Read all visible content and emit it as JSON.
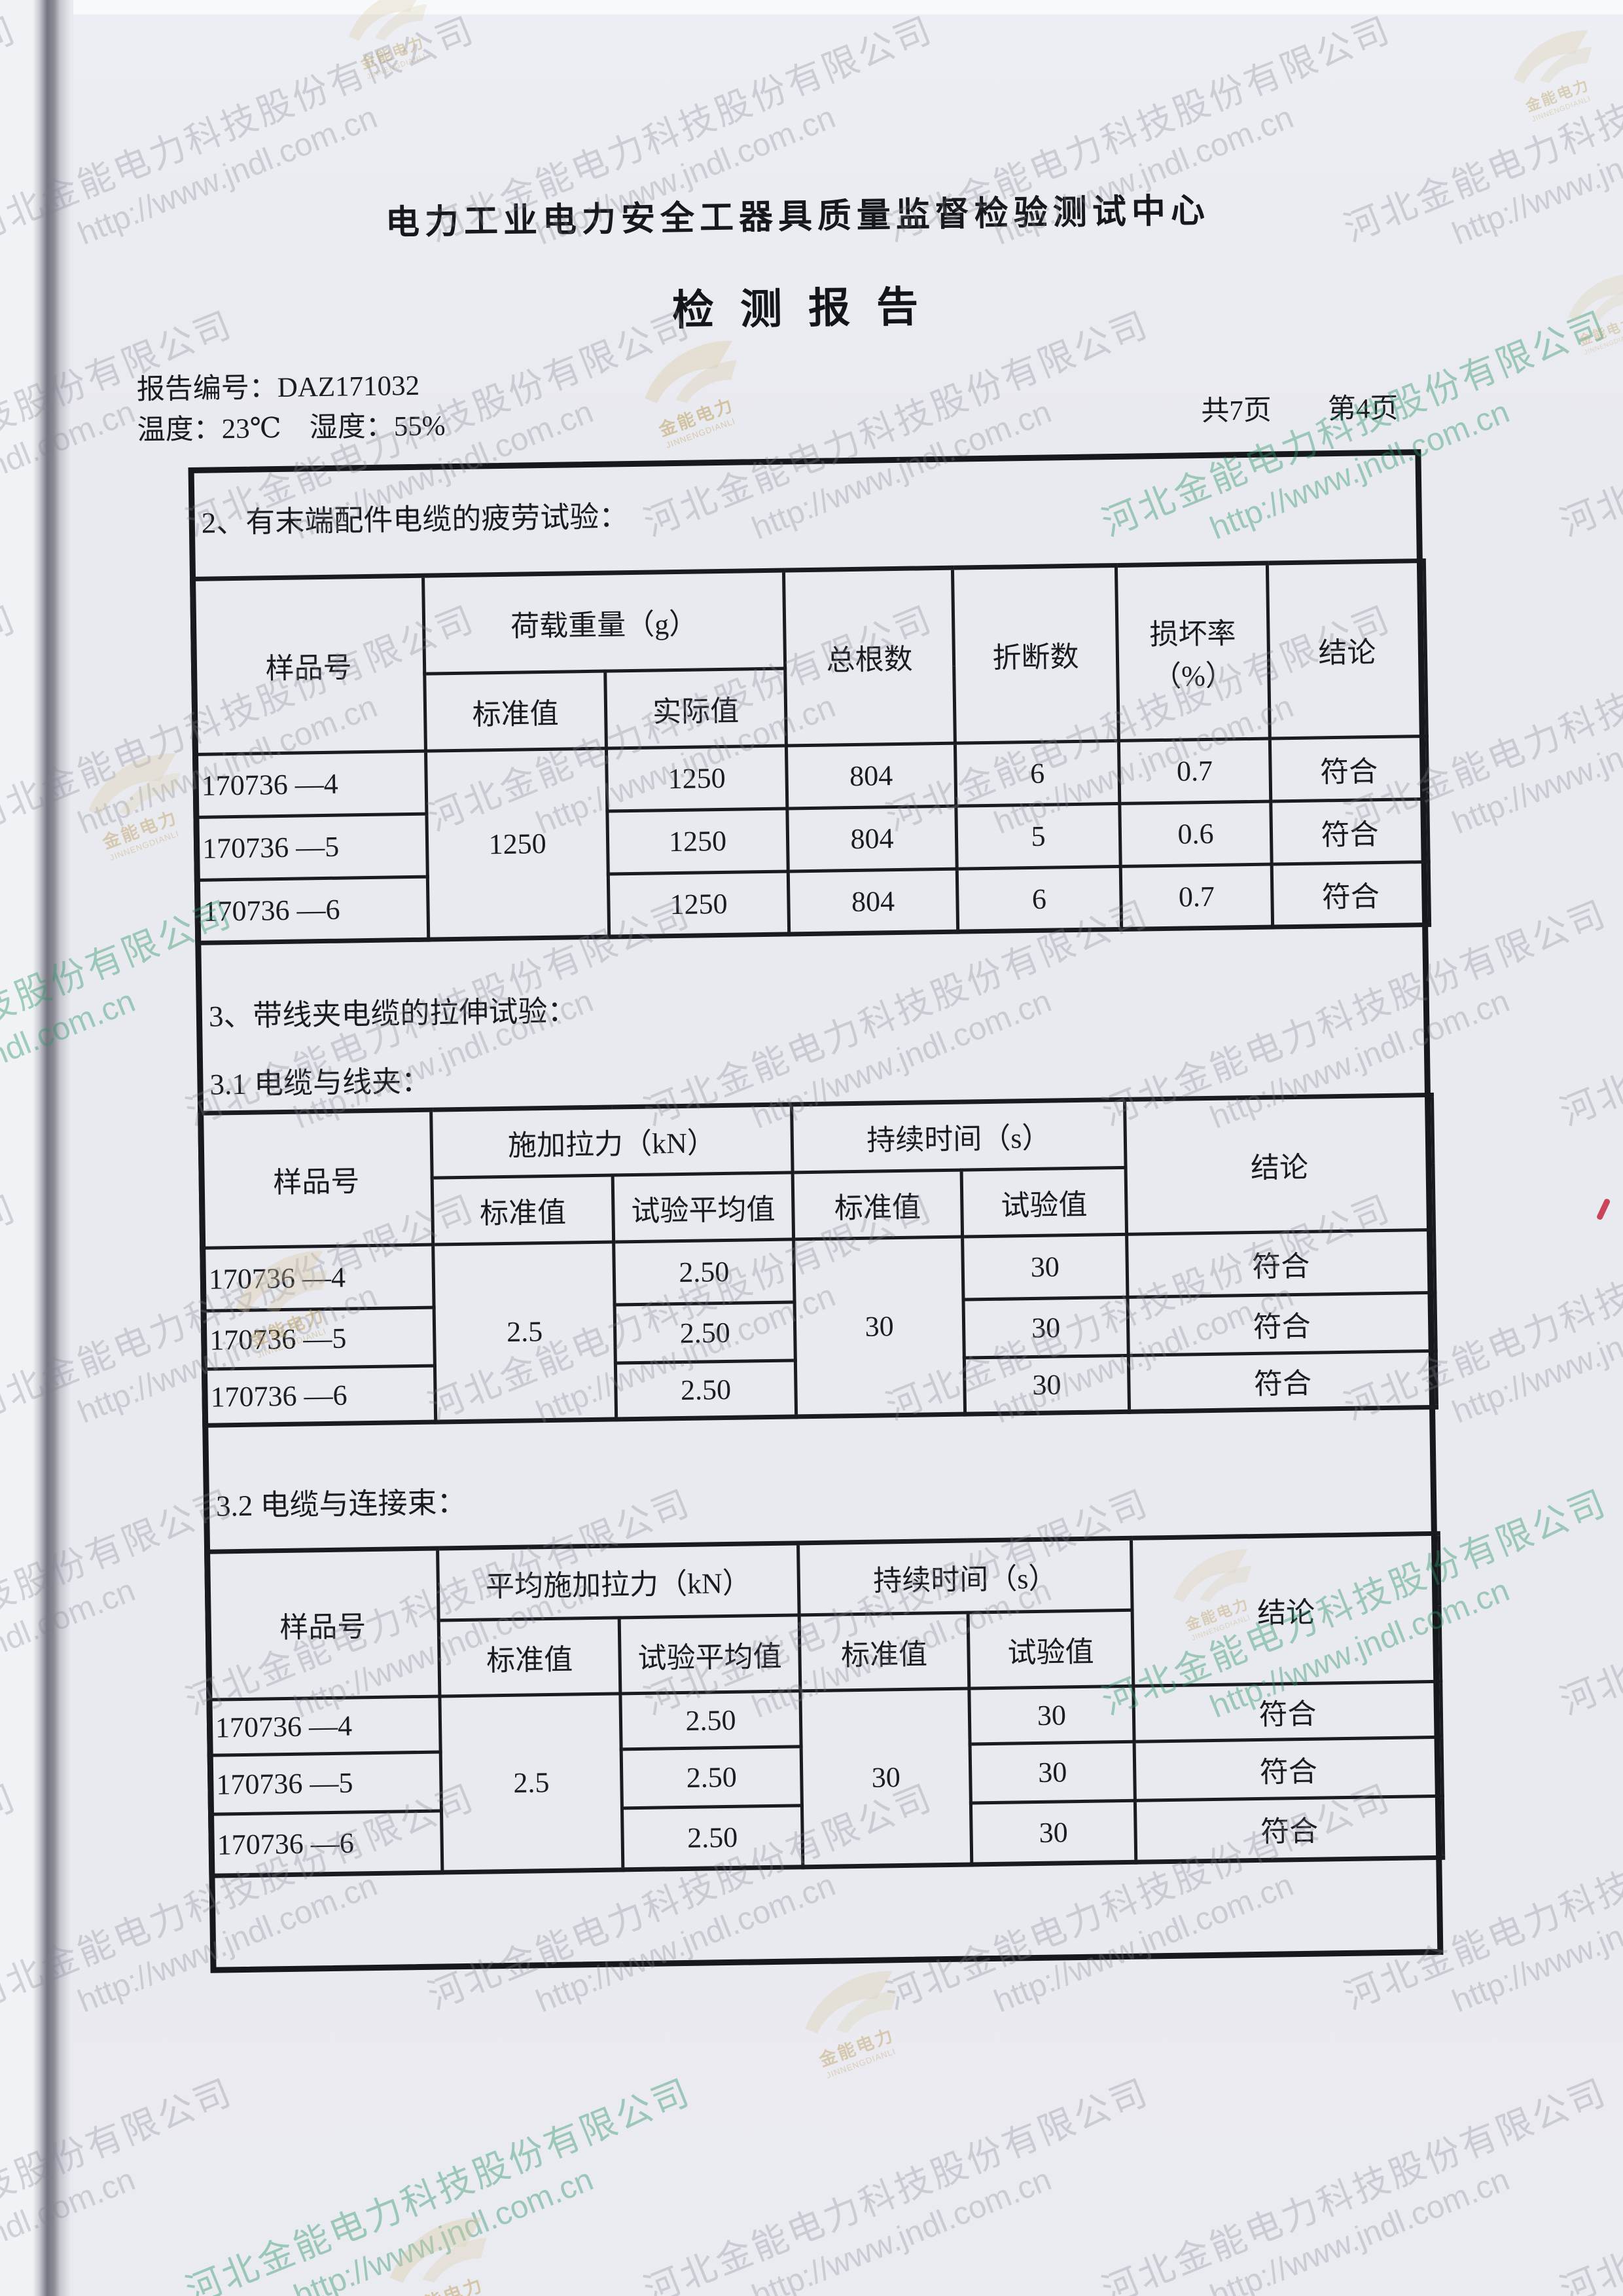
{
  "header": {
    "org_name": "电力工业电力安全工器具质量监督检验测试中心",
    "doc_title": "检 测 报 告"
  },
  "meta": {
    "report_no_line": "报告编号：DAZ171032",
    "env_line": "温度：23℃　湿度：55%",
    "page_line": "共7页　　第4页"
  },
  "sections": {
    "s2_heading": "2、有末端配件电缆的疲劳试验：",
    "s3_heading": "3、带线夹电缆的拉伸试验：",
    "s31_heading": "3.1 电缆与线夹：",
    "s32_heading": "3.2 电缆与连接束："
  },
  "tables": {
    "fatigue": {
      "col_sample": "样品号",
      "group_load": "荷载重量（g）",
      "col_standard": "标准值",
      "col_actual": "实际值",
      "col_total": "总根数",
      "col_broken": "折断数",
      "col_damage_rate": "损坏率（%）",
      "col_conclusion": "结论",
      "standard_value": "1250",
      "rows": [
        {
          "sample": "170736 —4",
          "actual": "1250",
          "total": "804",
          "broken": "6",
          "rate": "0.7",
          "conclusion": "符合"
        },
        {
          "sample": "170736 —5",
          "actual": "1250",
          "total": "804",
          "broken": "5",
          "rate": "0.6",
          "conclusion": "符合"
        },
        {
          "sample": "170736 —6",
          "actual": "1250",
          "total": "804",
          "broken": "6",
          "rate": "0.7",
          "conclusion": "符合"
        }
      ]
    },
    "tension_clamp": {
      "col_sample": "样品号",
      "group_force": "施加拉力（kN）",
      "col_standard": "标准值",
      "col_test_avg": "试验平均值",
      "group_duration": "持续时间（s）",
      "col_duration_standard": "标准值",
      "col_test_value": "试验值",
      "col_conclusion": "结论",
      "force_standard": "2.5",
      "duration_standard": "30",
      "rows": [
        {
          "sample": "170736 —4",
          "force_avg": "2.50",
          "duration": "30",
          "conclusion": "符合"
        },
        {
          "sample": "170736 —5",
          "force_avg": "2.50",
          "duration": "30",
          "conclusion": "符合"
        },
        {
          "sample": "170736 —6",
          "force_avg": "2.50",
          "duration": "30",
          "conclusion": "符合"
        }
      ]
    },
    "tension_bundle": {
      "col_sample": "样品号",
      "group_force": "平均施加拉力（kN）",
      "col_standard": "标准值",
      "col_test_avg": "试验平均值",
      "group_duration": "持续时间（s）",
      "col_duration_standard": "标准值",
      "col_test_value": "试验值",
      "col_conclusion": "结论",
      "force_standard": "2.5",
      "duration_standard": "30",
      "rows": [
        {
          "sample": "170736 —4",
          "force_avg": "2.50",
          "duration": "30",
          "conclusion": "符合"
        },
        {
          "sample": "170736 —5",
          "force_avg": "2.50",
          "duration": "30",
          "conclusion": "符合"
        },
        {
          "sample": "170736 —6",
          "force_avg": "2.50",
          "duration": "30",
          "conclusion": "符合"
        }
      ]
    }
  },
  "watermark": {
    "company": "河北金能电力科技股份有限公司",
    "url": "http://www.jndl.com.cn",
    "logo_text": "金能电力",
    "logo_subtext": "JINNENGDIANLI",
    "gray_color": "#80818e",
    "green_color": "#2e9668",
    "gold_color": "#ba984f",
    "tan_color": "#d8c69c"
  }
}
